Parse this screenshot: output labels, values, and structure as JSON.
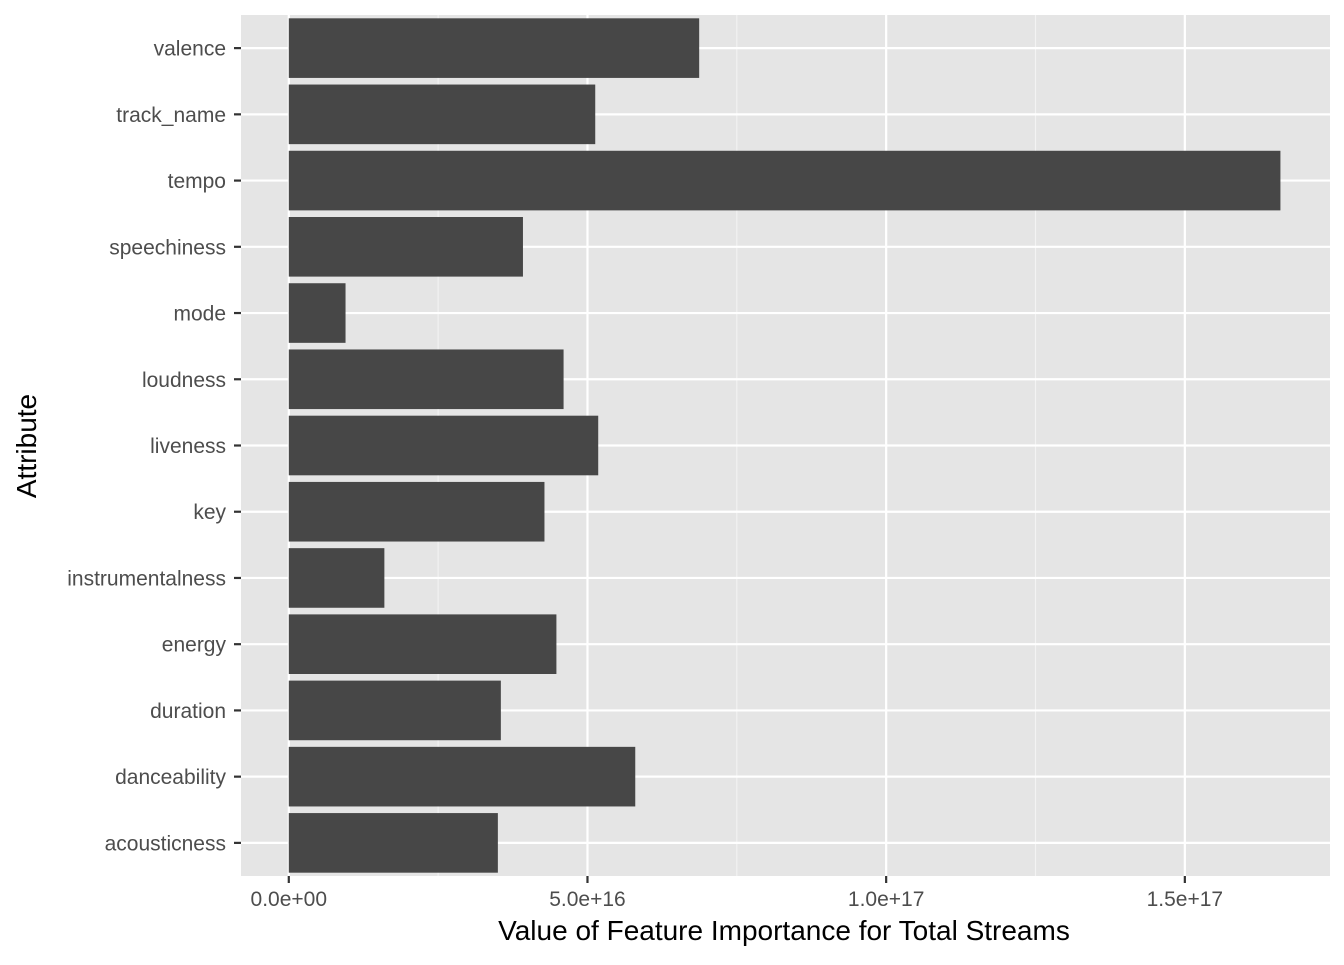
{
  "chart_data": {
    "type": "bar",
    "orientation": "horizontal",
    "title": "",
    "xlabel": "Value of Feature Importance for Total Streams",
    "ylabel": "Attribute",
    "categories": [
      "acousticness",
      "danceability",
      "duration",
      "energy",
      "instrumentalness",
      "key",
      "liveness",
      "loudness",
      "mode",
      "speechiness",
      "tempo",
      "track_name",
      "valence"
    ],
    "values": [
      3.5e+16,
      5.8e+16,
      3.55e+16,
      4.48e+16,
      1.6e+16,
      4.28e+16,
      5.18e+16,
      4.6e+16,
      9500000000000000.0,
      3.92e+16,
      1.66e+17,
      5.13e+16,
      6.87e+16
    ],
    "xlim": [
      -8000000000000000.0,
      1.743e+17
    ],
    "x_ticks": [
      0,
      5e+16,
      1e+17,
      1.5e+17
    ],
    "x_tick_labels": [
      "0.0e+00",
      "5.0e+16",
      "1.0e+17",
      "1.5e+17"
    ],
    "grid": true,
    "legend": "none",
    "colors": {
      "bar": "#474747",
      "panel": "#e5e5e5",
      "grid_major": "#ffffff",
      "tick_label": "#4d4d4d",
      "tick_mark": "#333333",
      "axis_title": "#000000"
    }
  }
}
